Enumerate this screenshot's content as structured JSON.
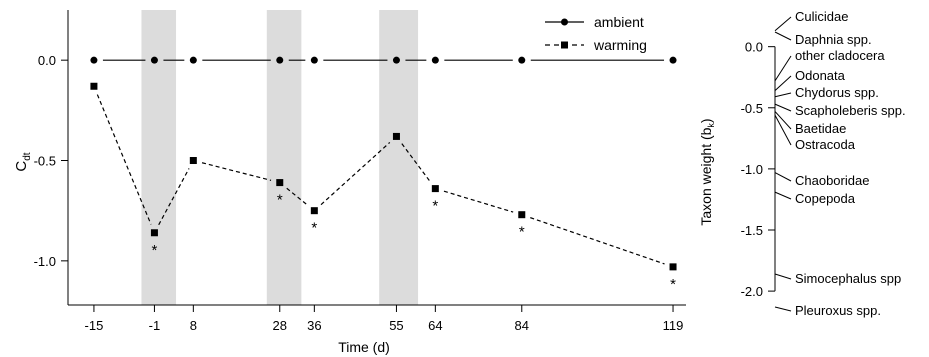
{
  "chart_data": [
    {
      "type": "line",
      "xlabel": "Time (d)",
      "ylabel": "C",
      "ylabel_sub": "dt",
      "x_ticks": [
        -15,
        -1,
        8,
        28,
        36,
        55,
        64,
        84,
        119
      ],
      "y_ticks": [
        0.0,
        -0.5,
        -1.0
      ],
      "y_tick_labels": [
        "0.0",
        "-0.5",
        "-1.0"
      ],
      "xlim": [
        -21,
        122
      ],
      "ylim": [
        -1.22,
        0.25
      ],
      "shaded_intervals": [
        [
          -4,
          4
        ],
        [
          25,
          33
        ],
        [
          51,
          60
        ]
      ],
      "legend_position": "top-right",
      "significance_marker": "*",
      "series": [
        {
          "name": "ambient",
          "marker": "circle",
          "line": "solid",
          "x": [
            -15,
            -1,
            8,
            28,
            36,
            55,
            64,
            84,
            119
          ],
          "y": [
            0,
            0,
            0,
            0,
            0,
            0,
            0,
            0,
            0
          ]
        },
        {
          "name": "warming",
          "marker": "square",
          "line": "dashed",
          "x": [
            -15,
            -1,
            8,
            28,
            36,
            55,
            64,
            84,
            119
          ],
          "y": [
            -0.13,
            -0.86,
            -0.5,
            -0.61,
            -0.75,
            -0.38,
            -0.64,
            -0.77,
            -1.03
          ],
          "significant": [
            false,
            true,
            false,
            true,
            true,
            false,
            true,
            true,
            true
          ]
        }
      ]
    },
    {
      "type": "scatter",
      "ylabel": "Taxon weight (b",
      "ylabel_sub": "k",
      "ylabel_end": ")",
      "y_ticks": [
        0.0,
        -0.5,
        -1.0,
        -1.5,
        -2.0
      ],
      "y_tick_labels": [
        "0.0",
        "-0.5",
        "-1.0",
        "-1.5",
        "-2.0"
      ],
      "ylim": [
        -2.22,
        0.3
      ],
      "taxa": [
        {
          "label": "Culicidae",
          "weight": 0.13
        },
        {
          "label": "Daphnia spp.",
          "weight": 0.12
        },
        {
          "label": "other cladocera",
          "weight": -0.28
        },
        {
          "label": "Odonata",
          "weight": -0.36
        },
        {
          "label": "Chydorus spp.",
          "weight": -0.41
        },
        {
          "label": "Scapholeberis spp.",
          "weight": -0.47
        },
        {
          "label": "Baetidae",
          "weight": -0.53
        },
        {
          "label": "Ostracoda",
          "weight": -0.56
        },
        {
          "label": "Chaoboridae",
          "weight": -1.03
        },
        {
          "label": "Copepoda",
          "weight": -1.19
        },
        {
          "label": "Simocephalus spp",
          "weight": -1.86
        },
        {
          "label": "Pleuroxus spp.",
          "weight": -2.13
        }
      ]
    }
  ]
}
